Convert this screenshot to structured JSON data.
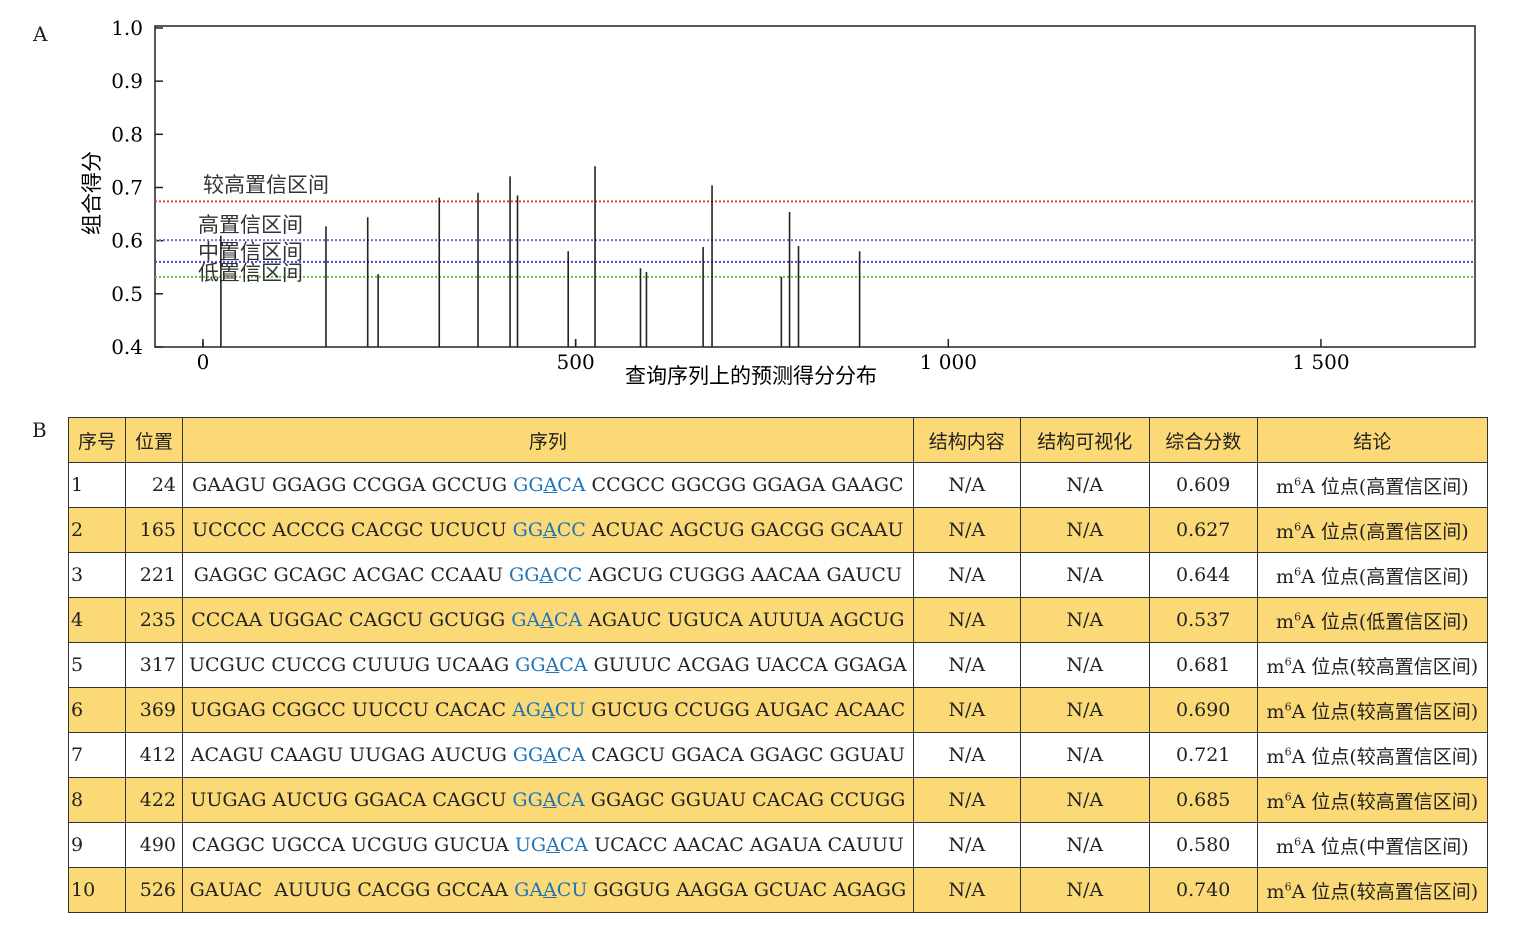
{
  "panel_labels": {
    "a": "A",
    "b": "B"
  },
  "chart_data": {
    "type": "bar",
    "xlabel": "查询序列上的预测得分分布",
    "ylabel": "组合得分",
    "xlim": [
      0,
      1700
    ],
    "ylim": [
      0.4,
      1.0
    ],
    "xticks": [
      {
        "v": 0,
        "label": "0"
      },
      {
        "v": 500,
        "label": "500"
      },
      {
        "v": 1000,
        "label": "1 000"
      },
      {
        "v": 1500,
        "label": "1 500"
      }
    ],
    "yticks": [
      "0.4",
      "0.5",
      "0.6",
      "0.7",
      "0.8",
      "0.9",
      "1.0"
    ],
    "thresholds": [
      {
        "name": "较高置信区间",
        "value": 0.674,
        "color": "#e8403c"
      },
      {
        "name": "高置信区间",
        "value": 0.601,
        "color": "#9a5cc8"
      },
      {
        "name": "中置信区间",
        "value": 0.56,
        "color": "#3a4fc0"
      },
      {
        "name": "低置信区间",
        "value": 0.532,
        "color": "#6ac040"
      }
    ],
    "x": [
      0,
      24,
      165,
      221,
      235,
      317,
      369,
      412,
      422,
      490,
      500,
      526,
      587,
      595,
      671,
      683,
      776,
      787,
      799,
      881
    ],
    "values": [
      0.41,
      0.609,
      0.627,
      0.644,
      0.537,
      0.681,
      0.69,
      0.721,
      0.685,
      0.58,
      0.415,
      0.74,
      0.548,
      0.541,
      0.588,
      0.704,
      0.532,
      0.654,
      0.59,
      0.58
    ]
  },
  "table": {
    "headers": [
      "序号",
      "位置",
      "序列",
      "结构内容",
      "结构可视化",
      "综合分数",
      "结论"
    ],
    "rows": [
      {
        "no": "1",
        "pos": "24",
        "pre": "GAAGU GGAGG CCGGA GCCUG ",
        "m1": "GG",
        "m2": "A",
        "m3": "CA",
        "post": " CCGCC GGCGG GGAGA GAAGC",
        "c1": "N/A",
        "c2": "N/A",
        "score": "0.609",
        "m": "m",
        "sup": "6",
        "concl": "A 位点(高置信区间)"
      },
      {
        "no": "2",
        "pos": "165",
        "pre": "UCCCC ACCCG CACGC UCUCU ",
        "m1": "GG",
        "m2": "A",
        "m3": "CC",
        "post": " ACUAC AGCUG GACGG GCAAU",
        "c1": "N/A",
        "c2": "N/A",
        "score": "0.627",
        "m": "m",
        "sup": "6",
        "concl": "A 位点(高置信区间)"
      },
      {
        "no": "3",
        "pos": "221",
        "pre": "GAGGC GCAGC ACGAC CCAAU ",
        "m1": "GG",
        "m2": "A",
        "m3": "CC",
        "post": " AGCUG CUGGG AACAA GAUCU",
        "c1": "N/A",
        "c2": "N/A",
        "score": "0.644",
        "m": "m",
        "sup": "6",
        "concl": "A 位点(高置信区间)"
      },
      {
        "no": "4",
        "pos": "235",
        "pre": "CCCAA UGGAC CAGCU GCUGG ",
        "m1": "GA",
        "m2": "A",
        "m3": "CA",
        "post": " AGAUC UGUCA AUUUA AGCUG",
        "c1": "N/A",
        "c2": "N/A",
        "score": "0.537",
        "m": "m",
        "sup": "6",
        "concl": "A 位点(低置信区间)"
      },
      {
        "no": "5",
        "pos": "317",
        "pre": "UCGUC CUCCG CUUUG UCAAG ",
        "m1": "GG",
        "m2": "A",
        "m3": "CA",
        "post": " GUUUC ACGAG UACCA GGAGA",
        "c1": "N/A",
        "c2": "N/A",
        "score": "0.681",
        "m": "m",
        "sup": "6",
        "concl": "A 位点(较高置信区间)"
      },
      {
        "no": "6",
        "pos": "369",
        "pre": "UGGAG CGGCC UUCCU CACAC ",
        "m1": "AG",
        "m2": "A",
        "m3": "CU",
        "post": " GUCUG CCUGG AUGAC ACAAC",
        "c1": "N/A",
        "c2": "N/A",
        "score": "0.690",
        "m": "m",
        "sup": "6",
        "concl": "A 位点(较高置信区间)"
      },
      {
        "no": "7",
        "pos": "412",
        "pre": "ACAGU CAAGU UUGAG AUCUG ",
        "m1": "GG",
        "m2": "A",
        "m3": "CA",
        "post": " CAGCU GGACA GGAGC GGUAU",
        "c1": "N/A",
        "c2": "N/A",
        "score": "0.721",
        "m": "m",
        "sup": "6",
        "concl": "A 位点(较高置信区间)"
      },
      {
        "no": "8",
        "pos": "422",
        "pre": "UUGAG AUCUG GGACA CAGCU ",
        "m1": "GG",
        "m2": "A",
        "m3": "CA",
        "post": " GGAGC GGUAU CACAG CCUGG",
        "c1": "N/A",
        "c2": "N/A",
        "score": "0.685",
        "m": "m",
        "sup": "6",
        "concl": "A 位点(较高置信区间)"
      },
      {
        "no": "9",
        "pos": "490",
        "pre": "CAGGC UGCCA UCGUG GUCUA ",
        "m1": "UG",
        "m2": "A",
        "m3": "CA",
        "post": " UCACC AACAC AGAUA CAUUU",
        "c1": "N/A",
        "c2": "N/A",
        "score": "0.580",
        "m": "m",
        "sup": "6",
        "concl": "A 位点(中置信区间)"
      },
      {
        "no": "10",
        "pos": "526",
        "pre": "GAUAC  AUUUG CACGG GCCAA ",
        "m1": "GA",
        "m2": "A",
        "m3": "CU",
        "post": " GGGUG AAGGA GCUAC AGAGG",
        "c1": "N/A",
        "c2": "N/A",
        "score": "0.740",
        "m": "m",
        "sup": "6",
        "concl": "A 位点(较高置信区间)"
      }
    ]
  }
}
